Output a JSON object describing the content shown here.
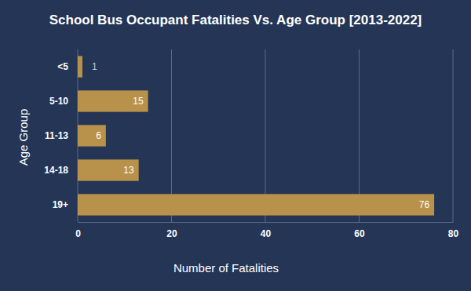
{
  "chart_data": {
    "type": "bar",
    "title": "School Bus Occupant Fatalities Vs. Age Group [2013-2022]",
    "xlabel": "Number of Fatalities",
    "ylabel": "Age Group",
    "categories": [
      "<5",
      "5-10",
      "11-13",
      "14-18",
      "19+"
    ],
    "values": [
      1,
      15,
      6,
      13,
      76
    ],
    "color": "#b8914a",
    "orientation": "horizontal",
    "data_labels": true,
    "grid": true,
    "xlim": [
      0,
      80
    ],
    "xticks": [
      0,
      20,
      40,
      60,
      80
    ]
  }
}
